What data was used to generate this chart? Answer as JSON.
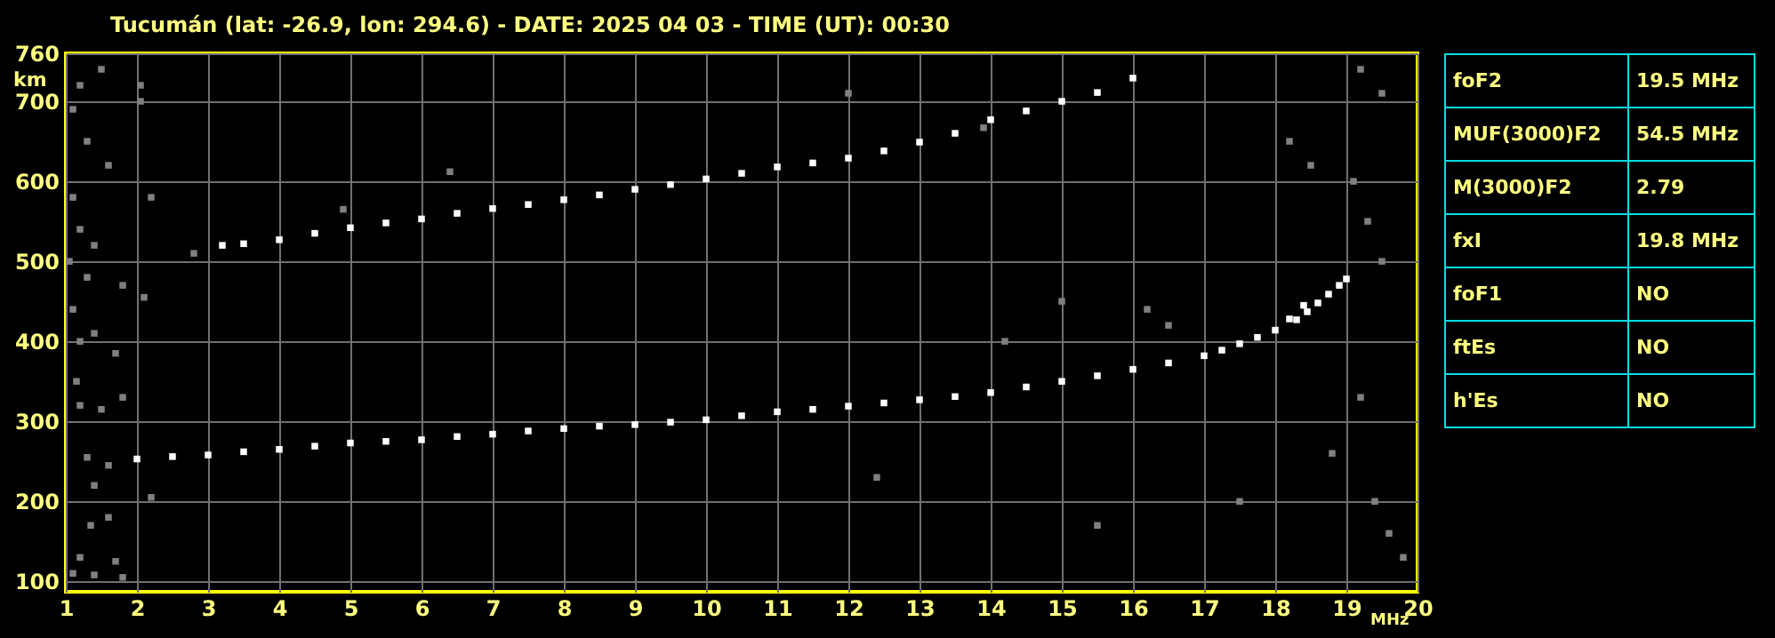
{
  "chart_data": [
    {
      "type": "scatter",
      "title": "Tucumán (lat: -26.9, lon: 294.6) - DATE: 2025 04 03 - TIME (UT): 00:30",
      "xlabel": "MHz",
      "ylabel": "km",
      "xlim": [
        1,
        20
      ],
      "ylim": [
        87,
        760
      ],
      "xticks": [
        1,
        2,
        3,
        4,
        5,
        6,
        7,
        8,
        9,
        10,
        11,
        12,
        13,
        14,
        15,
        16,
        17,
        18,
        19,
        20
      ],
      "yticks": [
        100,
        200,
        300,
        400,
        500,
        600,
        700,
        760
      ],
      "grid": true,
      "marker": "square",
      "series": [
        {
          "color": "#ffffff",
          "x": [
            2,
            2.5,
            3,
            3.5,
            4,
            4.5,
            5,
            5.5,
            6,
            6.5,
            7,
            7.5,
            8,
            8.5,
            9,
            9.5,
            10,
            10.5,
            11,
            11.5,
            12,
            12.5,
            13,
            13.5,
            14,
            14.5,
            15,
            15.5,
            16,
            16.5,
            17,
            17.25,
            17.5,
            17.75,
            18,
            18.2,
            18.4
          ],
          "values": [
            253,
            256,
            258,
            262,
            265,
            269,
            273,
            275,
            277,
            281,
            284,
            288,
            291,
            294,
            296,
            299,
            302,
            307,
            312,
            315,
            319,
            323,
            327,
            331,
            336,
            343,
            350,
            357,
            365,
            373,
            382,
            389,
            397,
            405,
            414,
            428,
            445
          ]
        },
        {
          "color": "#ffffff",
          "x": [
            18.3,
            18.45,
            18.6,
            18.75,
            18.9,
            19
          ],
          "values": [
            427,
            437,
            448,
            459,
            470,
            478
          ]
        },
        {
          "color": "#ffffff",
          "x": [
            3.2,
            3.5,
            4,
            4.5,
            5,
            5.5,
            6,
            6.5,
            7,
            7.5,
            8,
            8.5,
            9,
            9.5,
            10,
            10.5,
            11,
            11.5,
            12,
            12.5,
            13,
            13.5,
            14,
            14.5,
            15,
            15.5,
            16
          ],
          "values": [
            520,
            522,
            527,
            535,
            542,
            548,
            553,
            560,
            566,
            571,
            577,
            583,
            590,
            596,
            603,
            610,
            618,
            623,
            629,
            638,
            649,
            660,
            677,
            688,
            700,
            711,
            729
          ]
        },
        {
          "color": "#808080",
          "x": [
            1.1,
            1.2,
            1.5,
            1.3,
            1.6,
            1.1,
            1.2,
            1.4,
            1.05,
            1.3,
            1.8,
            1.1,
            1.2,
            1.4,
            1.7,
            1.15,
            1.2,
            1.5,
            1.8,
            1.3,
            1.6,
            1.4,
            1.35,
            1.6,
            1.2,
            1.7,
            1.1,
            1.4,
            1.8,
            2.05,
            2.05,
            2.2,
            2.1,
            2.2,
            6.4,
            4.9,
            12,
            13.9,
            15,
            16.2,
            16.5,
            18.2,
            18.5,
            19.1,
            19.3,
            19.5,
            19.2,
            18.8,
            19.4,
            19.6,
            17.5,
            19.8,
            19.2,
            19.5,
            14.2,
            12.4,
            15.5,
            2.8
          ],
          "values": [
            690,
            720,
            740,
            650,
            620,
            580,
            540,
            520,
            500,
            480,
            470,
            440,
            400,
            410,
            385,
            350,
            320,
            315,
            330,
            255,
            245,
            220,
            170,
            180,
            130,
            125,
            110,
            108,
            105,
            720,
            700,
            580,
            455,
            205,
            612,
            565,
            710,
            667,
            450,
            440,
            420,
            650,
            620,
            600,
            550,
            500,
            330,
            260,
            200,
            160,
            200,
            130,
            740,
            710,
            400,
            230,
            170,
            510
          ]
        }
      ]
    },
    {
      "type": "other",
      "annotations": [
        "foF2",
        "19.5 MHz",
        "MUF(3000)F2",
        "54.5 MHz",
        "M(3000)F2",
        "2.79",
        "fxI",
        "19.8 MHz",
        "foF1",
        "NO",
        "ftEs",
        "NO",
        "h'Es",
        "NO"
      ]
    }
  ]
}
